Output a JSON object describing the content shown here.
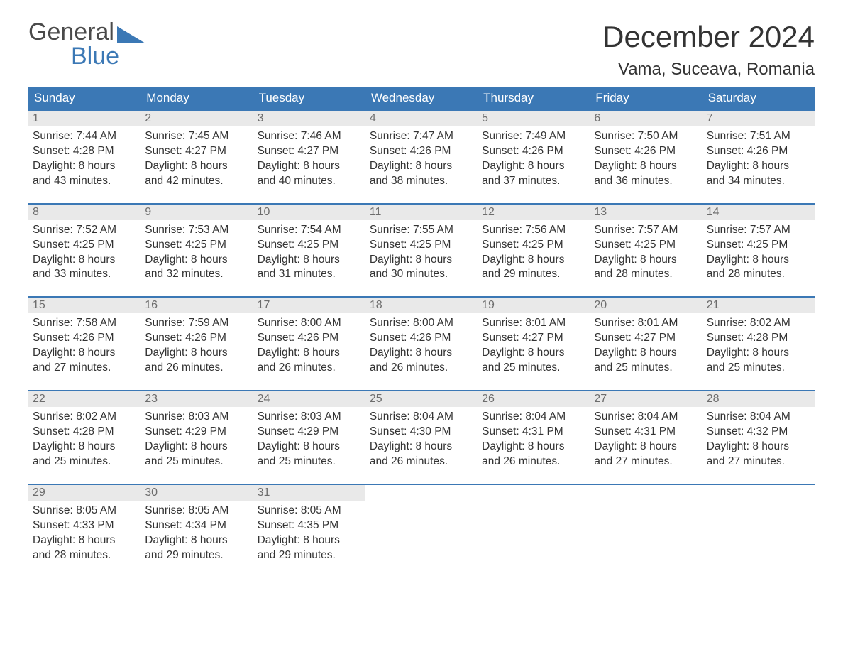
{
  "logo": {
    "line1": "General",
    "line2": "Blue"
  },
  "title": "December 2024",
  "location": "Vama, Suceava, Romania",
  "colors": {
    "header_bg": "#3b78b5",
    "header_fg": "#ffffff",
    "daynum_bg": "#e9e9e9",
    "daynum_fg": "#6d6d6d",
    "border": "#3b78b5",
    "text": "#333333",
    "logo_gray": "#4a4a4a",
    "logo_blue": "#3b78b5"
  },
  "day_headers": [
    "Sunday",
    "Monday",
    "Tuesday",
    "Wednesday",
    "Thursday",
    "Friday",
    "Saturday"
  ],
  "weeks": [
    [
      {
        "n": "1",
        "sr": "7:44 AM",
        "ss": "4:28 PM",
        "dl": "8 hours and 43 minutes."
      },
      {
        "n": "2",
        "sr": "7:45 AM",
        "ss": "4:27 PM",
        "dl": "8 hours and 42 minutes."
      },
      {
        "n": "3",
        "sr": "7:46 AM",
        "ss": "4:27 PM",
        "dl": "8 hours and 40 minutes."
      },
      {
        "n": "4",
        "sr": "7:47 AM",
        "ss": "4:26 PM",
        "dl": "8 hours and 38 minutes."
      },
      {
        "n": "5",
        "sr": "7:49 AM",
        "ss": "4:26 PM",
        "dl": "8 hours and 37 minutes."
      },
      {
        "n": "6",
        "sr": "7:50 AM",
        "ss": "4:26 PM",
        "dl": "8 hours and 36 minutes."
      },
      {
        "n": "7",
        "sr": "7:51 AM",
        "ss": "4:26 PM",
        "dl": "8 hours and 34 minutes."
      }
    ],
    [
      {
        "n": "8",
        "sr": "7:52 AM",
        "ss": "4:25 PM",
        "dl": "8 hours and 33 minutes."
      },
      {
        "n": "9",
        "sr": "7:53 AM",
        "ss": "4:25 PM",
        "dl": "8 hours and 32 minutes."
      },
      {
        "n": "10",
        "sr": "7:54 AM",
        "ss": "4:25 PM",
        "dl": "8 hours and 31 minutes."
      },
      {
        "n": "11",
        "sr": "7:55 AM",
        "ss": "4:25 PM",
        "dl": "8 hours and 30 minutes."
      },
      {
        "n": "12",
        "sr": "7:56 AM",
        "ss": "4:25 PM",
        "dl": "8 hours and 29 minutes."
      },
      {
        "n": "13",
        "sr": "7:57 AM",
        "ss": "4:25 PM",
        "dl": "8 hours and 28 minutes."
      },
      {
        "n": "14",
        "sr": "7:57 AM",
        "ss": "4:25 PM",
        "dl": "8 hours and 28 minutes."
      }
    ],
    [
      {
        "n": "15",
        "sr": "7:58 AM",
        "ss": "4:26 PM",
        "dl": "8 hours and 27 minutes."
      },
      {
        "n": "16",
        "sr": "7:59 AM",
        "ss": "4:26 PM",
        "dl": "8 hours and 26 minutes."
      },
      {
        "n": "17",
        "sr": "8:00 AM",
        "ss": "4:26 PM",
        "dl": "8 hours and 26 minutes."
      },
      {
        "n": "18",
        "sr": "8:00 AM",
        "ss": "4:26 PM",
        "dl": "8 hours and 26 minutes."
      },
      {
        "n": "19",
        "sr": "8:01 AM",
        "ss": "4:27 PM",
        "dl": "8 hours and 25 minutes."
      },
      {
        "n": "20",
        "sr": "8:01 AM",
        "ss": "4:27 PM",
        "dl": "8 hours and 25 minutes."
      },
      {
        "n": "21",
        "sr": "8:02 AM",
        "ss": "4:28 PM",
        "dl": "8 hours and 25 minutes."
      }
    ],
    [
      {
        "n": "22",
        "sr": "8:02 AM",
        "ss": "4:28 PM",
        "dl": "8 hours and 25 minutes."
      },
      {
        "n": "23",
        "sr": "8:03 AM",
        "ss": "4:29 PM",
        "dl": "8 hours and 25 minutes."
      },
      {
        "n": "24",
        "sr": "8:03 AM",
        "ss": "4:29 PM",
        "dl": "8 hours and 25 minutes."
      },
      {
        "n": "25",
        "sr": "8:04 AM",
        "ss": "4:30 PM",
        "dl": "8 hours and 26 minutes."
      },
      {
        "n": "26",
        "sr": "8:04 AM",
        "ss": "4:31 PM",
        "dl": "8 hours and 26 minutes."
      },
      {
        "n": "27",
        "sr": "8:04 AM",
        "ss": "4:31 PM",
        "dl": "8 hours and 27 minutes."
      },
      {
        "n": "28",
        "sr": "8:04 AM",
        "ss": "4:32 PM",
        "dl": "8 hours and 27 minutes."
      }
    ],
    [
      {
        "n": "29",
        "sr": "8:05 AM",
        "ss": "4:33 PM",
        "dl": "8 hours and 28 minutes."
      },
      {
        "n": "30",
        "sr": "8:05 AM",
        "ss": "4:34 PM",
        "dl": "8 hours and 29 minutes."
      },
      {
        "n": "31",
        "sr": "8:05 AM",
        "ss": "4:35 PM",
        "dl": "8 hours and 29 minutes."
      },
      null,
      null,
      null,
      null
    ]
  ],
  "labels": {
    "sunrise": "Sunrise:",
    "sunset": "Sunset:",
    "daylight": "Daylight:"
  }
}
